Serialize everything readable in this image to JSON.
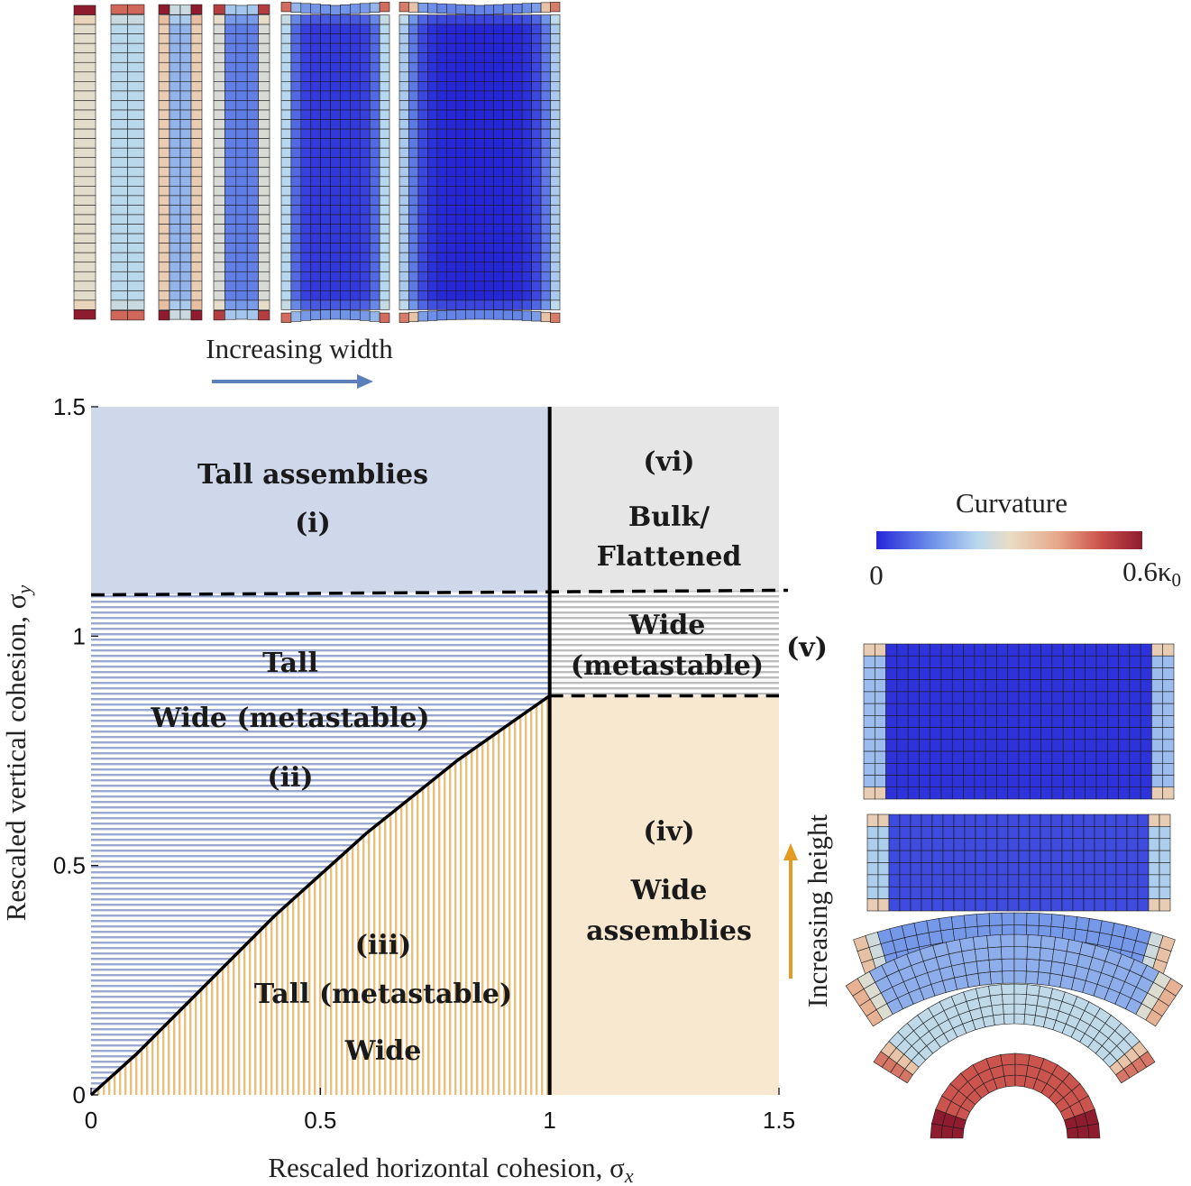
{
  "chart_data": {
    "type": "phase-diagram",
    "xlabel": "Rescaled horizontal cohesion, σ",
    "xlabel_sub": "x",
    "ylabel": "Rescaled vertical cohesion, σ",
    "ylabel_sub": "y",
    "xlim": [
      0,
      1.5
    ],
    "ylim": [
      0,
      1.5
    ],
    "xticks": [
      0,
      0.5,
      1,
      1.5
    ],
    "yticks": [
      0,
      0.5,
      1,
      1.5
    ],
    "xtick_labels": [
      "0",
      "0.5",
      "1",
      "1.5"
    ],
    "ytick_labels": [
      "0",
      "0.5",
      "1",
      "1.5"
    ],
    "boundaries": {
      "vertical_solid_x": 1.0,
      "dashed_upper": {
        "x": [
          0,
          1.5
        ],
        "y": [
          1.09,
          1.1
        ]
      },
      "dashed_right": {
        "x": [
          1.0,
          1.5
        ],
        "y": [
          0.87,
          0.87
        ]
      },
      "curve": {
        "x": [
          0,
          0.1,
          0.2,
          0.3,
          0.4,
          0.5,
          0.6,
          0.7,
          0.8,
          0.9,
          1.0
        ],
        "y": [
          0,
          0.09,
          0.19,
          0.29,
          0.39,
          0.48,
          0.57,
          0.65,
          0.73,
          0.8,
          0.87
        ]
      }
    },
    "regions": [
      {
        "id": "i",
        "lines": [
          "Tall assemblies",
          "(i)"
        ]
      },
      {
        "id": "ii",
        "lines": [
          "Tall",
          "Wide (metastable)",
          "(ii)"
        ]
      },
      {
        "id": "iii",
        "lines": [
          "(iii)",
          "Tall (metastable)",
          "Wide"
        ]
      },
      {
        "id": "iv",
        "lines": [
          "(iv)",
          "Wide",
          "assemblies"
        ]
      },
      {
        "id": "v",
        "lines": [
          "Wide",
          "(metastable)",
          "(v)"
        ]
      },
      {
        "id": "vi",
        "lines": [
          "(vi)",
          "Bulk/",
          "Flattened"
        ]
      }
    ],
    "colors": {
      "tall": "#cfd8ea",
      "tall_hatch": "#8c9fcb",
      "wide": "#f8e8d0",
      "wide_hatch": "#e6b870",
      "bulk": "#e6e6e6",
      "bulk_hatch": "#b9b9b9"
    }
  },
  "colorbar": {
    "title": "Curvature",
    "min_label": "0",
    "max_label": "0.6κ",
    "max_label_sub": "0",
    "colors": [
      "#2626d9",
      "#6b8de8",
      "#b8d8ee",
      "#e8ddc6",
      "#e7a98a",
      "#c94e49",
      "#8e1b2e"
    ]
  },
  "top_panel": {
    "arrow_label": "Increasing width",
    "arrow_color": "#5b7fb8"
  },
  "right_panel": {
    "arrow_label": "Increasing height",
    "arrow_color": "#e39b21"
  }
}
